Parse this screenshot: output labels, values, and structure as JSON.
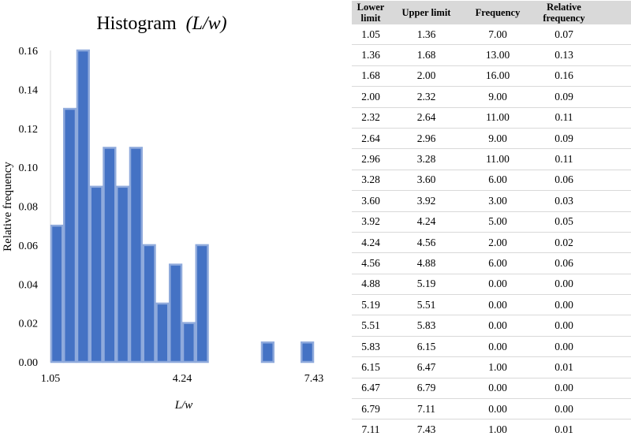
{
  "chart_data": {
    "type": "bar",
    "title_main": "Histogram",
    "title_var": "(L/w)",
    "xlabel": "L/w",
    "ylabel": "Relative frequency",
    "ylim": [
      0,
      0.16
    ],
    "yticks": [
      "0.00",
      "0.02",
      "0.04",
      "0.06",
      "0.08",
      "0.10",
      "0.12",
      "0.14",
      "0.16"
    ],
    "xticks": [
      {
        "value": 1.05,
        "label": "1.05"
      },
      {
        "value": 4.24,
        "label": "4.24"
      },
      {
        "value": 7.43,
        "label": "7.43"
      }
    ],
    "bins": [
      [
        1.05,
        1.36
      ],
      [
        1.36,
        1.68
      ],
      [
        1.68,
        2.0
      ],
      [
        2.0,
        2.32
      ],
      [
        2.32,
        2.64
      ],
      [
        2.64,
        2.96
      ],
      [
        2.96,
        3.28
      ],
      [
        3.28,
        3.6
      ],
      [
        3.6,
        3.92
      ],
      [
        3.92,
        4.24
      ],
      [
        4.24,
        4.56
      ],
      [
        4.56,
        4.88
      ],
      [
        4.88,
        5.19
      ],
      [
        5.19,
        5.51
      ],
      [
        5.51,
        5.83
      ],
      [
        5.83,
        6.15
      ],
      [
        6.15,
        6.47
      ],
      [
        6.47,
        6.79
      ],
      [
        6.79,
        7.11
      ],
      [
        7.11,
        7.43
      ]
    ],
    "values": [
      0.07,
      0.13,
      0.16,
      0.09,
      0.11,
      0.09,
      0.11,
      0.06,
      0.03,
      0.05,
      0.02,
      0.06,
      0.0,
      0.0,
      0.0,
      0.0,
      0.01,
      0.0,
      0.0,
      0.01
    ],
    "bar_color": "#4472c4",
    "bar_edge_color": "#8faadc",
    "grid": false
  },
  "table": {
    "headers": [
      "Lower limit",
      "Upper limit",
      "Frequency",
      "Relative frequency"
    ],
    "rows": [
      [
        "1.05",
        "1.36",
        "7.00",
        "0.07"
      ],
      [
        "1.36",
        "1.68",
        "13.00",
        "0.13"
      ],
      [
        "1.68",
        "2.00",
        "16.00",
        "0.16"
      ],
      [
        "2.00",
        "2.32",
        "9.00",
        "0.09"
      ],
      [
        "2.32",
        "2.64",
        "11.00",
        "0.11"
      ],
      [
        "2.64",
        "2.96",
        "9.00",
        "0.09"
      ],
      [
        "2.96",
        "3.28",
        "11.00",
        "0.11"
      ],
      [
        "3.28",
        "3.60",
        "6.00",
        "0.06"
      ],
      [
        "3.60",
        "3.92",
        "3.00",
        "0.03"
      ],
      [
        "3.92",
        "4.24",
        "5.00",
        "0.05"
      ],
      [
        "4.24",
        "4.56",
        "2.00",
        "0.02"
      ],
      [
        "4.56",
        "4.88",
        "6.00",
        "0.06"
      ],
      [
        "4.88",
        "5.19",
        "0.00",
        "0.00"
      ],
      [
        "5.19",
        "5.51",
        "0.00",
        "0.00"
      ],
      [
        "5.51",
        "5.83",
        "0.00",
        "0.00"
      ],
      [
        "5.83",
        "6.15",
        "0.00",
        "0.00"
      ],
      [
        "6.15",
        "6.47",
        "1.00",
        "0.01"
      ],
      [
        "6.47",
        "6.79",
        "0.00",
        "0.00"
      ],
      [
        "6.79",
        "7.11",
        "0.00",
        "0.00"
      ],
      [
        "7.11",
        "7.43",
        "1.00",
        "0.01"
      ]
    ]
  }
}
